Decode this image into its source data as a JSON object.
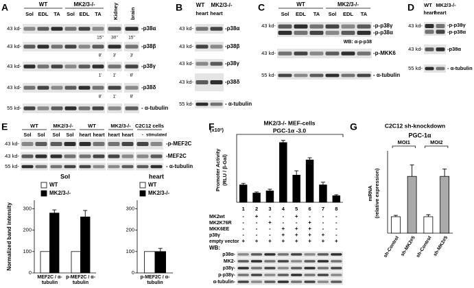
{
  "panels": {
    "A": {
      "letter": "A",
      "groups": [
        "WT",
        "MK2/3-/-"
      ],
      "lanes": [
        "Sol",
        "EDL",
        "TA",
        "Sol",
        "EDL",
        "TA"
      ],
      "extra_lanes": [
        "Kidney",
        "brain"
      ],
      "rows": [
        {
          "size": "43 kd-",
          "label": "-p38α",
          "exposures": [
            "15''",
            "30''",
            "15''"
          ]
        },
        {
          "size": "43 kd-",
          "label": "-p38β",
          "exposures": [
            "8'",
            "3'",
            "3'"
          ]
        },
        {
          "size": "43 kd-",
          "label": "-p38γ",
          "exposures": [
            "1'",
            "1'",
            "8'"
          ]
        },
        {
          "size": "43 kd-",
          "label": "-p38δ",
          "exposures": [
            "8'",
            "1'",
            "8'"
          ]
        },
        {
          "size": "55 kd-",
          "label": "- α-tubulin"
        }
      ]
    },
    "B": {
      "letter": "B",
      "groups": [
        "WT",
        "MK2/3-/-"
      ],
      "lanes": [
        "heart",
        "heart"
      ],
      "rows": [
        {
          "size": "43 kd-",
          "label": "-p38α"
        },
        {
          "size": "43 kd-",
          "label": "-p38β"
        },
        {
          "size": "43 kd-",
          "label": "-p38γ"
        },
        {
          "size": "43 kd-",
          "label": "-p38δ"
        },
        {
          "size": "55 kd-",
          "label": "- α-tubulin"
        }
      ]
    },
    "C": {
      "letter": "C",
      "groups": [
        "WT",
        "MK2/3-/-"
      ],
      "lanes": [
        "Sol",
        "EDL",
        "TA",
        "Sol",
        "EDL",
        "TA"
      ],
      "rows": [
        {
          "size": "43 kd-",
          "labels": [
            "-p-p38γ",
            "-p-p38α"
          ],
          "note": "WB: α-p-p38"
        },
        {
          "size": "43 kd-",
          "label": "-p-MKK6"
        },
        {
          "size": "55 kd-",
          "label": "- α-tubulin"
        }
      ]
    },
    "D": {
      "letter": "D",
      "groups": [
        "WT",
        "MK2/3-/-"
      ],
      "lanes": [
        "heart",
        "heart"
      ],
      "rows": [
        {
          "size": "43 kd-",
          "labels": [
            "-p-p38γ",
            "-p-p38α"
          ]
        },
        {
          "size": "43 kd-",
          "label": "-p38α"
        },
        {
          "size": "55 kd-",
          "label": "- α-tubulin"
        }
      ]
    },
    "E": {
      "letter": "E",
      "groups": [
        "WT",
        "MK2/3-/-",
        "WT",
        "MK2/3-/-",
        "C2C12 cells"
      ],
      "lanes": [
        "Sol",
        "Sol",
        "Sol",
        "Sol",
        "heart",
        "heart",
        "heart",
        "heart",
        "-",
        "stimulated"
      ],
      "rows": [
        {
          "size": "43 kd-",
          "label": "-p-MEF2C"
        },
        {
          "size": "43 kd-",
          "label": "-MEF2C"
        },
        {
          "size": "55 kd-",
          "label": "- α-tubulin"
        }
      ]
    },
    "F": {
      "letter": "F",
      "multiplier": "(x10²)",
      "header": "MK2/3-/- MEF-cells",
      "construct": "PGC-1α -3.0",
      "conditions": [
        {
          "name": "MK2wt",
          "signs": [
            "-",
            "+",
            "-",
            "-",
            "+",
            "-",
            "-",
            "-"
          ]
        },
        {
          "name": "MK2K76R",
          "signs": [
            "-",
            "-",
            "+",
            "-",
            "-",
            "+",
            "-",
            "-"
          ]
        },
        {
          "name": "MKK6EE",
          "signs": [
            "-",
            "-",
            "-",
            "+",
            "+",
            "+",
            "-",
            "-"
          ]
        },
        {
          "name": "p38γ",
          "signs": [
            "-",
            "-",
            "-",
            "+",
            "+",
            "+",
            "+",
            "-"
          ]
        },
        {
          "name": "empty vector",
          "signs": [
            "+",
            "+",
            "+",
            "+",
            "+",
            "+",
            "+",
            "+"
          ]
        }
      ],
      "wb_label": "WB:",
      "wb_rows": [
        "p38α-",
        "MK2-",
        "p38γ-",
        "p-p38γ-",
        "α-tubulin-"
      ]
    },
    "G": {
      "letter": "G",
      "title": "C2C12 sh-knockdown",
      "groups": [
        "MOI1",
        "MOI2"
      ]
    }
  },
  "chart_data": [
    {
      "type": "bar",
      "title": "Sol",
      "ylabel": "Normalized band intensity",
      "categories": [
        "MEF2C / α-tubulin",
        "p-MEF2C / α-tubulin"
      ],
      "series": [
        {
          "name": "WT",
          "color": "#ffffff",
          "values": [
            100,
            100
          ]
        },
        {
          "name": "MK2/3-/-",
          "color": "#000000",
          "values": [
            280,
            262
          ],
          "errors": [
            15,
            30
          ]
        }
      ],
      "ylim": [
        0,
        340
      ],
      "yticks": [
        0,
        100,
        200,
        300
      ]
    },
    {
      "type": "bar",
      "title": "heart",
      "categories": [
        "p-MEF2C / α-tubulin"
      ],
      "series": [
        {
          "name": "WT",
          "color": "#ffffff",
          "values": [
            100
          ]
        },
        {
          "name": "MK2/3-/-",
          "color": "#000000",
          "values": [
            100
          ],
          "errors": [
            15
          ]
        }
      ],
      "ylim": [
        0,
        340
      ],
      "yticks": [
        0,
        100,
        200,
        300
      ]
    },
    {
      "type": "bar",
      "ylabel": [
        "Promoter Activity",
        "(RLU / β-Gal)"
      ],
      "categories": [
        "1",
        "2",
        "3",
        "4",
        "5",
        "6",
        "7",
        "8"
      ],
      "values": [
        3.2,
        1.7,
        2.1,
        11.0,
        5.0,
        7.8,
        3.2,
        1.2
      ],
      "errors": [
        0.3,
        0.2,
        0.3,
        0.4,
        0.8,
        0.4,
        0.5,
        0.2
      ],
      "color": "#000000",
      "ylim": [
        0,
        12
      ]
    },
    {
      "type": "bar",
      "title": "PGC-1α",
      "ylabel": [
        "mRNA",
        "(relative expression)"
      ],
      "categories": [
        "sh-Control",
        "sh-MK2#5",
        "sh-Control",
        "sh-MK2#5"
      ],
      "values": [
        100,
        345,
        100,
        345
      ],
      "errors": [
        8,
        70,
        12,
        45
      ],
      "colors": [
        "#ffffff",
        "#aaaaaa",
        "#ffffff",
        "#aaaaaa"
      ],
      "ylim": [
        0,
        500
      ]
    }
  ]
}
